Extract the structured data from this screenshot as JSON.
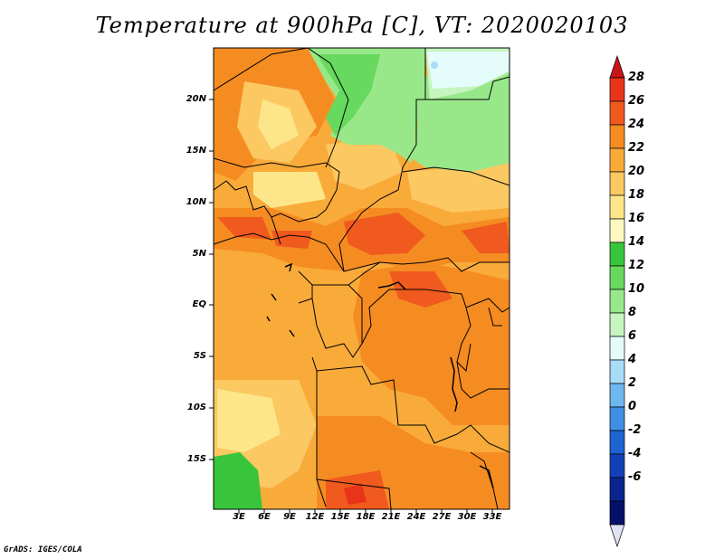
{
  "title": "Temperature at 900hPa [C], VT: 2020020103",
  "footer": "GrADS: IGES/COLA",
  "map": {
    "lat_ticks": [
      "20N",
      "15N",
      "10N",
      "5N",
      "EQ",
      "5S",
      "10S",
      "15S"
    ],
    "lon_ticks": [
      "3E",
      "6E",
      "9E",
      "12E",
      "15E",
      "18E",
      "21E",
      "24E",
      "27E",
      "30E",
      "33E"
    ]
  },
  "colorbar": {
    "levels": [
      "28",
      "26",
      "24",
      "22",
      "20",
      "18",
      "16",
      "14",
      "12",
      "10",
      "8",
      "6",
      "4",
      "2",
      "0",
      "-2",
      "-4",
      "-6"
    ],
    "colors": [
      "#e8341a",
      "#f05a1e",
      "#f58c22",
      "#f9ab3a",
      "#fbc862",
      "#fde68a",
      "#fef9c0",
      "#39c53b",
      "#66d95e",
      "#98e88a",
      "#c6f5bf",
      "#e4fdfb",
      "#a8dcf7",
      "#6fb7ef",
      "#3f8fe4",
      "#1f63d2",
      "#1240b6",
      "#0a2590",
      "#04106a"
    ],
    "top_arrow_color": "#c8151a",
    "bottom_arrow_color": "#e0e0f6"
  }
}
